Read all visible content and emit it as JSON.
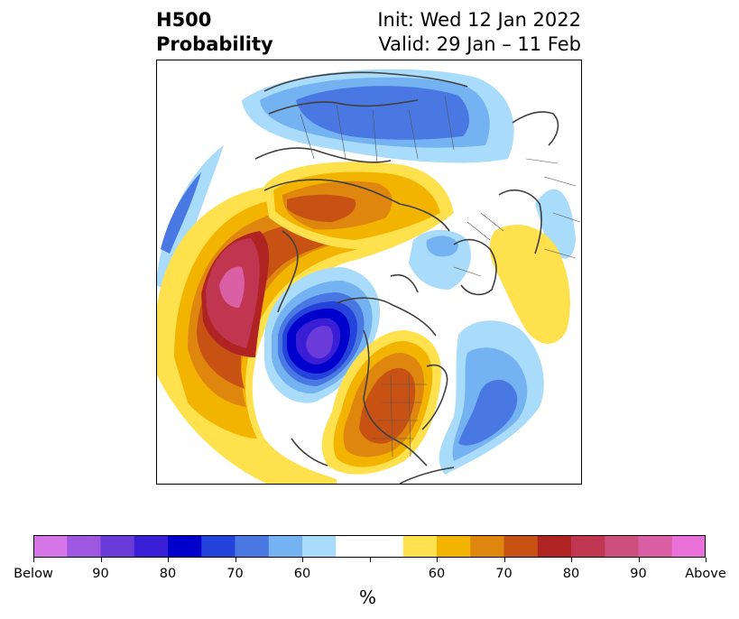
{
  "title": {
    "line1": "H500",
    "line2": "Probability",
    "init": "Init: Wed 12 Jan 2022",
    "valid": "Valid: 29 Jan – 11 Feb"
  },
  "colorbar": {
    "unit": "%",
    "colors": [
      "#d575e8",
      "#9e57e0",
      "#6a3bd9",
      "#3a1ed6",
      "#0000cc",
      "#2443db",
      "#4a78e3",
      "#75b2f2",
      "#a9dcfb",
      "#ffffff",
      "#ffffff",
      "#ffe04d",
      "#f2b400",
      "#de860e",
      "#c75213",
      "#b02323",
      "#c03651",
      "#cc4f7c",
      "#da5fa5",
      "#e870d8"
    ],
    "tick_labels": [
      "Below",
      "90",
      "80",
      "70",
      "60",
      "",
      "60",
      "70",
      "80",
      "90",
      "Above"
    ]
  },
  "palette": {
    "below_90": "#9e57e0",
    "below_80": "#3a1ed6",
    "below_70": "#2443db",
    "below_60": "#75b2f2",
    "below_50": "#a9dcfb",
    "above_50": "#ffe04d",
    "above_60": "#f2b400",
    "above_70": "#de860e",
    "above_80": "#c75213",
    "above_85": "#b02323",
    "above_90": "#c03651",
    "above_95": "#da5fa5"
  }
}
